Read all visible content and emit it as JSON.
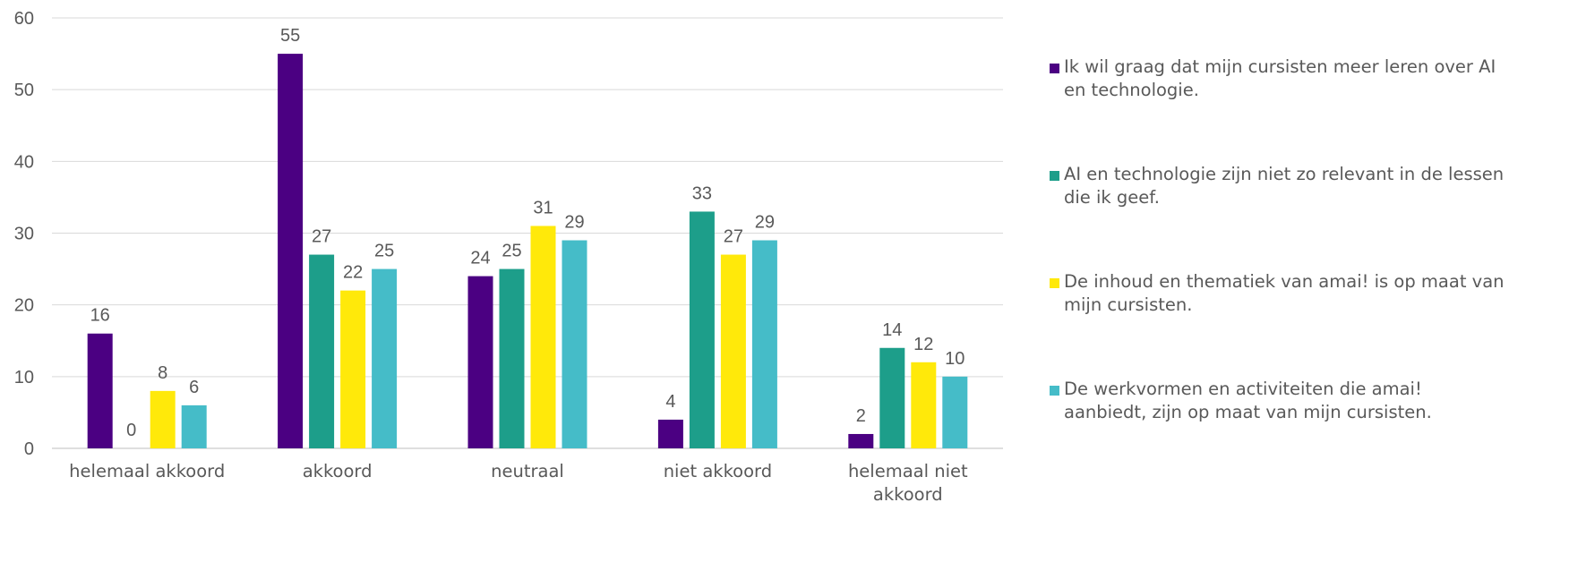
{
  "chart_data": {
    "type": "bar",
    "categories": [
      "helemaal akkoord",
      "akkoord",
      "neutraal",
      "niet akkoord",
      "helemaal niet akkoord"
    ],
    "category_lines": [
      [
        "helemaal akkoord"
      ],
      [
        "akkoord"
      ],
      [
        "neutraal"
      ],
      [
        "niet akkoord"
      ],
      [
        "helemaal niet",
        "akkoord"
      ]
    ],
    "series": [
      {
        "name": "Ik wil graag dat mijn cursisten meer leren over AI en technologie.",
        "color": "#4B0082",
        "values": [
          16,
          55,
          24,
          4,
          2
        ]
      },
      {
        "name": "AI en technologie zijn niet zo relevant in de lessen die ik geef.",
        "color": "#1D9E8A",
        "values": [
          0,
          27,
          25,
          33,
          14
        ]
      },
      {
        "name": "De inhoud en thematiek van amai! is op maat van mijn cursisten.",
        "color": "#FFE90A",
        "values": [
          8,
          22,
          31,
          27,
          12
        ]
      },
      {
        "name": "De werkvormen en activiteiten die amai! aanbiedt, zijn op maat van mijn cursisten.",
        "color": "#45BCC8",
        "values": [
          6,
          25,
          29,
          29,
          10
        ]
      }
    ],
    "legend_lines": [
      [
        "Ik wil graag dat mijn cursisten meer leren over AI",
        "en technologie."
      ],
      [
        "AI en technologie zijn niet zo relevant in de lessen",
        "die ik geef."
      ],
      [
        "De inhoud en thematiek van amai! is op maat van",
        "mijn cursisten."
      ],
      [
        "De werkvormen en activiteiten die amai!",
        "aanbiedt, zijn op maat van mijn cursisten."
      ]
    ],
    "yticks": [
      0,
      10,
      20,
      30,
      40,
      50,
      60
    ],
    "ylim": [
      0,
      60
    ],
    "grid": true,
    "legend_position": "right",
    "data_labels": true,
    "title": "",
    "xlabel": "",
    "ylabel": ""
  },
  "colors": {
    "text": "#595959",
    "gridline": "#D9D9D9",
    "axis": "#BFBFBF"
  }
}
